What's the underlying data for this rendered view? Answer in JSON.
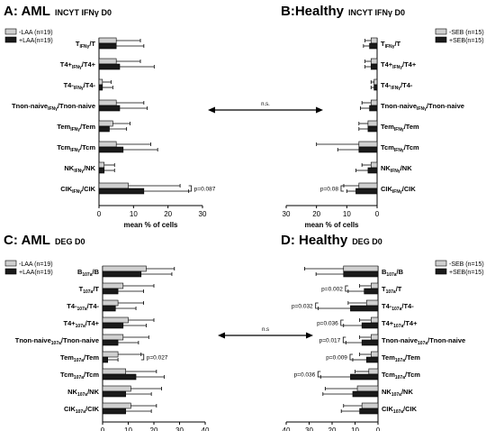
{
  "figure": {
    "ns_label": "n.s.",
    "ns_label_bottom": "n.s"
  },
  "chart_data": [
    {
      "id": "A",
      "type": "bar",
      "orientation": "horizontal",
      "direction": "right",
      "title": "A: AML",
      "subtitle": "INCYT IFNγ D0",
      "xlabel": "mean % of cells",
      "xlim": [
        0,
        30
      ],
      "xticks": [
        0,
        10,
        20,
        30
      ],
      "legend_position": "top-left",
      "categories": [
        {
          "base": "T",
          "sub": "IFNγ",
          "rest": "/T"
        },
        {
          "base": "T4+",
          "sub": "IFNγ",
          "rest": "/T4+"
        },
        {
          "base": "T4-",
          "sub": "IFNγ",
          "rest": "/T4-"
        },
        {
          "base": "Tnon-naive",
          "sub": "IFNγ",
          "rest": "/Tnon-naive"
        },
        {
          "base": "Tem",
          "sub": "IFNγ",
          "rest": "/Tem"
        },
        {
          "base": "Tcm",
          "sub": "IFNγ",
          "rest": "/Tcm"
        },
        {
          "base": "NK",
          "sub": "IFNγ",
          "rest": "/NK"
        },
        {
          "base": "CIK",
          "sub": "IFNγ",
          "rest": "/CIK"
        }
      ],
      "series": [
        {
          "name": "-LAA (n=19)",
          "color": "#d0d0d0",
          "values": [
            5,
            5,
            1,
            5,
            4,
            5,
            1.5,
            8.5
          ],
          "errors": [
            7,
            7,
            2.5,
            8,
            5,
            10,
            3,
            15
          ]
        },
        {
          "name": "+LAA(n=19)",
          "color": "#1a1a1a",
          "values": [
            5,
            6,
            1,
            6,
            3,
            7,
            1.5,
            13
          ],
          "errors": [
            8,
            10,
            3,
            8,
            5,
            10,
            3,
            13
          ]
        }
      ],
      "annotations": [
        {
          "text": "p=0.087",
          "category_index": 7
        }
      ]
    },
    {
      "id": "B",
      "type": "bar",
      "orientation": "horizontal",
      "direction": "left",
      "title": "B:Healthy",
      "subtitle": "INCYT IFNγ D0",
      "xlabel": "mean % of cells",
      "xlim": [
        0,
        30
      ],
      "xticks": [
        30,
        20,
        10,
        0
      ],
      "legend_position": "top-right",
      "categories": [
        {
          "base": "T",
          "sub": "IFNγ",
          "rest": "/T"
        },
        {
          "base": "T4+",
          "sub": "IFNγ",
          "rest": "/T4+"
        },
        {
          "base": "T4-",
          "sub": "IFNγ",
          "rest": "/T4-"
        },
        {
          "base": "Tnon-naive",
          "sub": "IFNγ",
          "rest": "/Tnon-naive"
        },
        {
          "base": "Tem",
          "sub": "IFNγ",
          "rest": "/Tem"
        },
        {
          "base": "Tcm",
          "sub": "IFNγ",
          "rest": "/Tcm"
        },
        {
          "base": "NK",
          "sub": "IFNγ",
          "rest": "/NK"
        },
        {
          "base": "CIK",
          "sub": "IFNγ",
          "rest": "/CIK"
        }
      ],
      "series": [
        {
          "name": "-SEB (n=15)",
          "color": "#d0d0d0",
          "values": [
            2,
            2,
            1,
            2,
            3,
            6,
            2,
            6
          ],
          "errors": [
            2,
            2,
            1,
            3,
            3,
            14,
            3,
            5
          ]
        },
        {
          "name": "+SEB(n=15)",
          "color": "#1a1a1a",
          "values": [
            2.5,
            2,
            1,
            2.5,
            3,
            6,
            3,
            7
          ],
          "errors": [
            2,
            2,
            1,
            3,
            3,
            7,
            4,
            3
          ]
        }
      ],
      "annotations": [
        {
          "text": "p=0.08",
          "category_index": 7
        }
      ]
    },
    {
      "id": "C",
      "type": "bar",
      "orientation": "horizontal",
      "direction": "right",
      "title": "C: AML",
      "subtitle": "DEG D0",
      "xlabel": "mean % of cells",
      "xlim": [
        0,
        40
      ],
      "xticks": [
        0,
        10,
        20,
        30,
        40
      ],
      "legend_position": "top-left",
      "categories": [
        {
          "base": "B",
          "sub": "107a",
          "rest": "/B"
        },
        {
          "base": "T",
          "sub": "107a",
          "rest": "/T"
        },
        {
          "base": "T4-",
          "sub": "107a",
          "rest": "/T4-"
        },
        {
          "base": "T4+",
          "sub": "107a",
          "rest": "/T4+"
        },
        {
          "base": "Tnon-naive",
          "sub": "107a",
          "rest": "/Tnon-naive"
        },
        {
          "base": "Tem",
          "sub": "107a",
          "rest": "/Tem"
        },
        {
          "base": "Tcm",
          "sub": "107a",
          "rest": "/Tcm"
        },
        {
          "base": "NK",
          "sub": "107a",
          "rest": "/NK"
        },
        {
          "base": "CIK",
          "sub": "107a",
          "rest": "/CIK"
        }
      ],
      "series": [
        {
          "name": "-LAA (n=19)",
          "color": "#d0d0d0",
          "values": [
            17,
            8,
            6,
            10,
            8,
            6,
            9,
            11,
            11
          ],
          "errors": [
            11,
            12,
            10,
            10,
            10,
            9,
            12,
            12,
            10
          ]
        },
        {
          "name": "+LAA(n=19)",
          "color": "#1a1a1a",
          "values": [
            15,
            6,
            5,
            8,
            6,
            2,
            13,
            9,
            9
          ],
          "errors": [
            12,
            10,
            8,
            9,
            8,
            4,
            11,
            10,
            10
          ]
        }
      ],
      "annotations": [
        {
          "text": "p=0.027",
          "category_index": 5
        }
      ]
    },
    {
      "id": "D",
      "type": "bar",
      "orientation": "horizontal",
      "direction": "left",
      "title": "D: Healthy",
      "subtitle": "DEG D0",
      "xlabel": "mean % of cells",
      "xlim": [
        0,
        40
      ],
      "xticks": [
        40,
        30,
        20,
        10,
        0
      ],
      "legend_position": "top-right",
      "categories": [
        {
          "base": "B",
          "sub": "107a",
          "rest": "/B"
        },
        {
          "base": "T",
          "sub": "107a",
          "rest": "/T"
        },
        {
          "base": "T4-",
          "sub": "107a",
          "rest": "/T4-"
        },
        {
          "base": "T4+",
          "sub": "107a",
          "rest": "/T4+"
        },
        {
          "base": "Tnon-naive",
          "sub": "107a",
          "rest": "/Tnon-naive"
        },
        {
          "base": "Tem",
          "sub": "107a",
          "rest": "/Tem"
        },
        {
          "base": "Tcm",
          "sub": "107a",
          "rest": "/Tcm"
        },
        {
          "base": "NK",
          "sub": "107a",
          "rest": "/NK"
        },
        {
          "base": "CIK",
          "sub": "107a",
          "rest": "/CIK"
        }
      ],
      "series": [
        {
          "name": "-SEB (n=15)",
          "color": "#d0d0d0",
          "values": [
            15,
            3,
            5,
            3,
            3,
            3,
            4,
            9,
            7
          ],
          "errors": [
            17,
            5,
            8,
            5,
            5,
            5,
            6,
            14,
            8
          ]
        },
        {
          "name": "+SEB(n=15)",
          "color": "#1a1a1a",
          "values": [
            15,
            6,
            12,
            7,
            7,
            5,
            12,
            11,
            8
          ],
          "errors": [
            12,
            7,
            14,
            8,
            7,
            6,
            13,
            13,
            8
          ]
        }
      ],
      "annotations": [
        {
          "text": "p=0.002",
          "category_index": 1
        },
        {
          "text": "p=0.032",
          "category_index": 2
        },
        {
          "text": "p=0.036",
          "category_index": 3
        },
        {
          "text": "p=0.017",
          "category_index": 4
        },
        {
          "text": "p=0.009",
          "category_index": 5
        },
        {
          "text": "p=0.036",
          "category_index": 6
        }
      ]
    }
  ]
}
